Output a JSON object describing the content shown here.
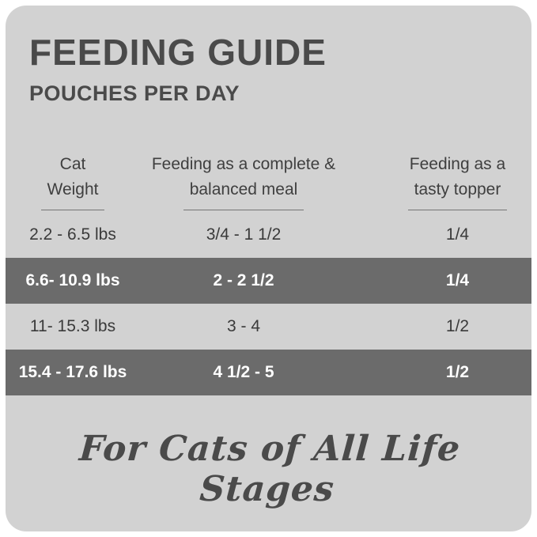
{
  "header": {
    "title": "FEEDING GUIDE",
    "subtitle": "POUCHES PER DAY"
  },
  "table": {
    "columns": [
      {
        "line1": "Cat",
        "line2": "Weight"
      },
      {
        "line1": "Feeding as a complete &",
        "line2": "balanced meal"
      },
      {
        "line1": "Feeding as a",
        "line2": "tasty topper"
      }
    ],
    "rows": [
      {
        "weight": "2.2 - 6.5 lbs",
        "complete_meal": "3/4 - 1 1/2",
        "tasty_topper": "1/4",
        "highlighted": false
      },
      {
        "weight": "6.6- 10.9 lbs",
        "complete_meal": "2 - 2 1/2",
        "tasty_topper": "1/4",
        "highlighted": true
      },
      {
        "weight": "11- 15.3 lbs",
        "complete_meal": "3 - 4",
        "tasty_topper": "1/2",
        "highlighted": false
      },
      {
        "weight": "15.4 - 17.6 lbs",
        "complete_meal": "4 1/2 - 5",
        "tasty_topper": "1/2",
        "highlighted": true
      }
    ]
  },
  "footer": {
    "tagline": "For Cats of All Life Stages"
  },
  "colors": {
    "panel_bg": "#d2d2d2",
    "highlight_band_bg": "#6b6b6b",
    "text_dark": "#4a4a4a",
    "text_on_band": "#ffffff"
  }
}
